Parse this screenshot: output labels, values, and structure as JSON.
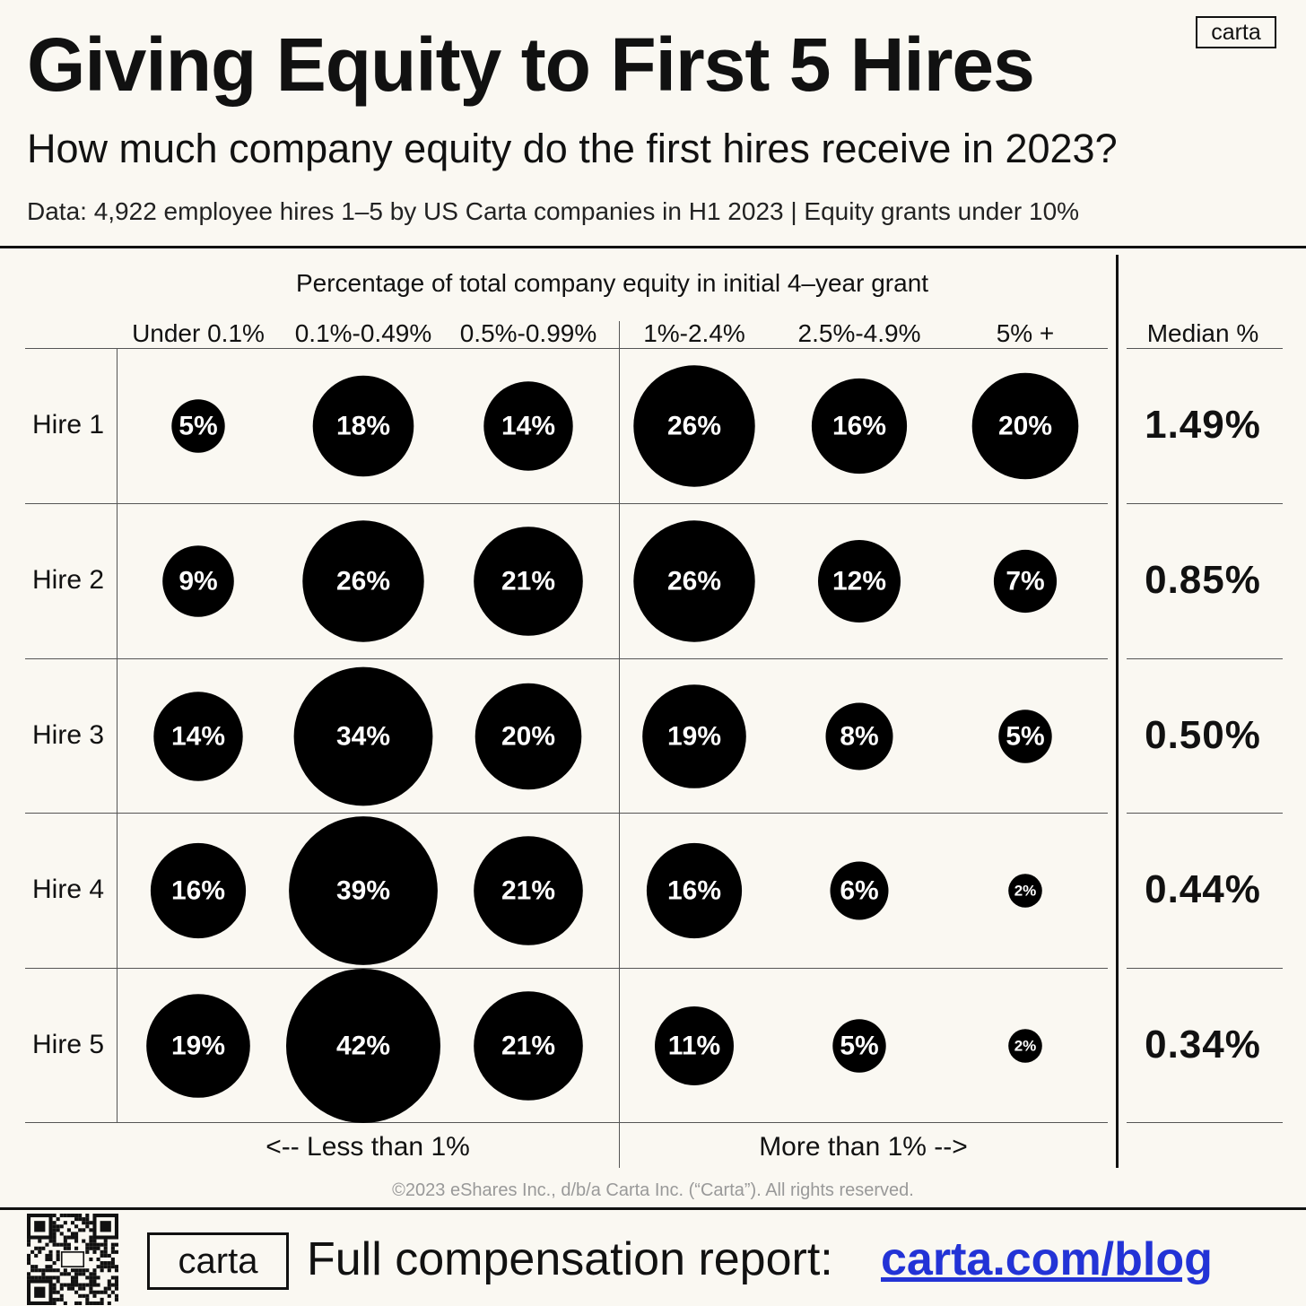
{
  "header": {
    "title": "Giving Equity to First 5 Hires",
    "subtitle": "How much company equity do the first hires receive in 2023?",
    "data_note": "Data: 4,922 employee hires 1–5 by US Carta companies in H1 2023  |  Equity grants under 10%",
    "logo_text": "carta"
  },
  "chart_data": {
    "type": "table",
    "title": "Giving Equity to First 5 Hires",
    "column_group_label": "Percentage of total company equity in initial 4–year grant",
    "categories": [
      "Under 0.1%",
      "0.1%-0.49%",
      "0.5%-0.99%",
      "1%-2.4%",
      "2.5%-4.9%",
      "5% +"
    ],
    "rows": [
      {
        "label": "Hire 1",
        "values": [
          5,
          18,
          14,
          26,
          16,
          20
        ],
        "median": "1.49%"
      },
      {
        "label": "Hire 2",
        "values": [
          9,
          26,
          21,
          26,
          12,
          7
        ],
        "median": "0.85%"
      },
      {
        "label": "Hire 3",
        "values": [
          14,
          34,
          20,
          19,
          8,
          5
        ],
        "median": "0.50%"
      },
      {
        "label": "Hire 4",
        "values": [
          16,
          39,
          21,
          16,
          6,
          2
        ],
        "median": "0.44%"
      },
      {
        "label": "Hire 5",
        "values": [
          19,
          42,
          21,
          11,
          5,
          2
        ],
        "median": "0.34%"
      }
    ],
    "value_suffix": "%",
    "median_label": "Median %",
    "less_label": "<-- Less than 1%",
    "more_label": "More than 1% -->"
  },
  "footer": {
    "copyright": "©2023 eShares Inc., d/b/a Carta Inc. (“Carta”). All rights reserved.",
    "logo_text": "carta",
    "report_label": "Full compensation report:",
    "report_link": "carta.com/blog"
  }
}
